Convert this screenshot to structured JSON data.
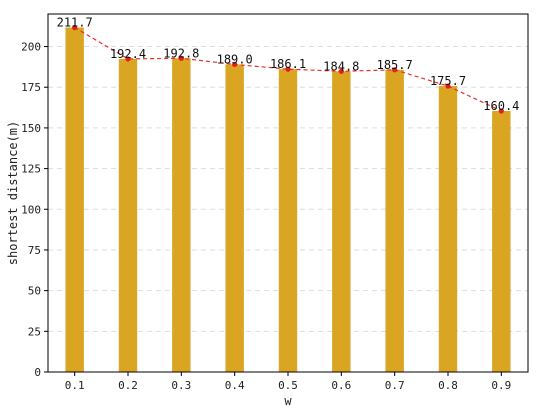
{
  "chart_data": {
    "type": "bar",
    "categories": [
      "0.1",
      "0.2",
      "0.3",
      "0.4",
      "0.5",
      "0.6",
      "0.7",
      "0.8",
      "0.9"
    ],
    "values": [
      211.7,
      192.4,
      192.8,
      189.0,
      186.1,
      184.8,
      185.7,
      175.7,
      160.4
    ],
    "data_labels": [
      "211.7",
      "192.4",
      "192.8",
      "189.0",
      "186.1",
      "184.8",
      "185.7",
      "175.7",
      "160.4"
    ],
    "overlay_line": {
      "style": "dashed",
      "marker": "point",
      "color": "#e8302a"
    },
    "title": "",
    "xlabel": "w",
    "ylabel": "shortest distance(m)",
    "ylim": [
      0,
      220
    ],
    "yticks": [
      0,
      25,
      50,
      75,
      100,
      125,
      150,
      175,
      200
    ],
    "grid": {
      "y": true,
      "x": false,
      "style": "dashed"
    },
    "legend": null,
    "colors": {
      "bar": "#daa520",
      "line": "#e8302a",
      "marker": "#e02020",
      "grid": "#dddddd",
      "axis": "#000000"
    }
  }
}
